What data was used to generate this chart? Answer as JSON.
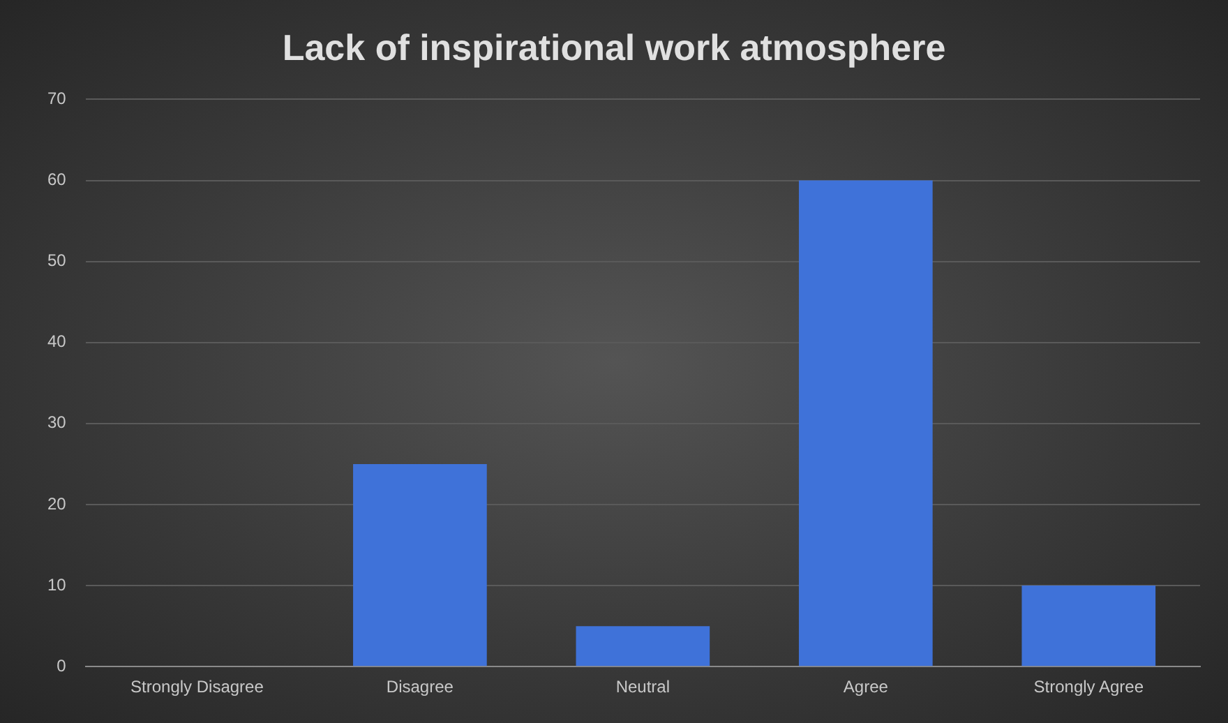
{
  "chart_data": {
    "type": "bar",
    "title": "Lack of inspirational work atmosphere",
    "categories": [
      "Strongly Disagree",
      "Disagree",
      "Neutral",
      "Agree",
      "Strongly Agree"
    ],
    "values": [
      0,
      25,
      5,
      60,
      10
    ],
    "color": "#3f72d9",
    "ylim": [
      0,
      70
    ],
    "yticks": [
      0,
      10,
      20,
      30,
      40,
      50,
      60,
      70
    ],
    "grid": "y"
  }
}
